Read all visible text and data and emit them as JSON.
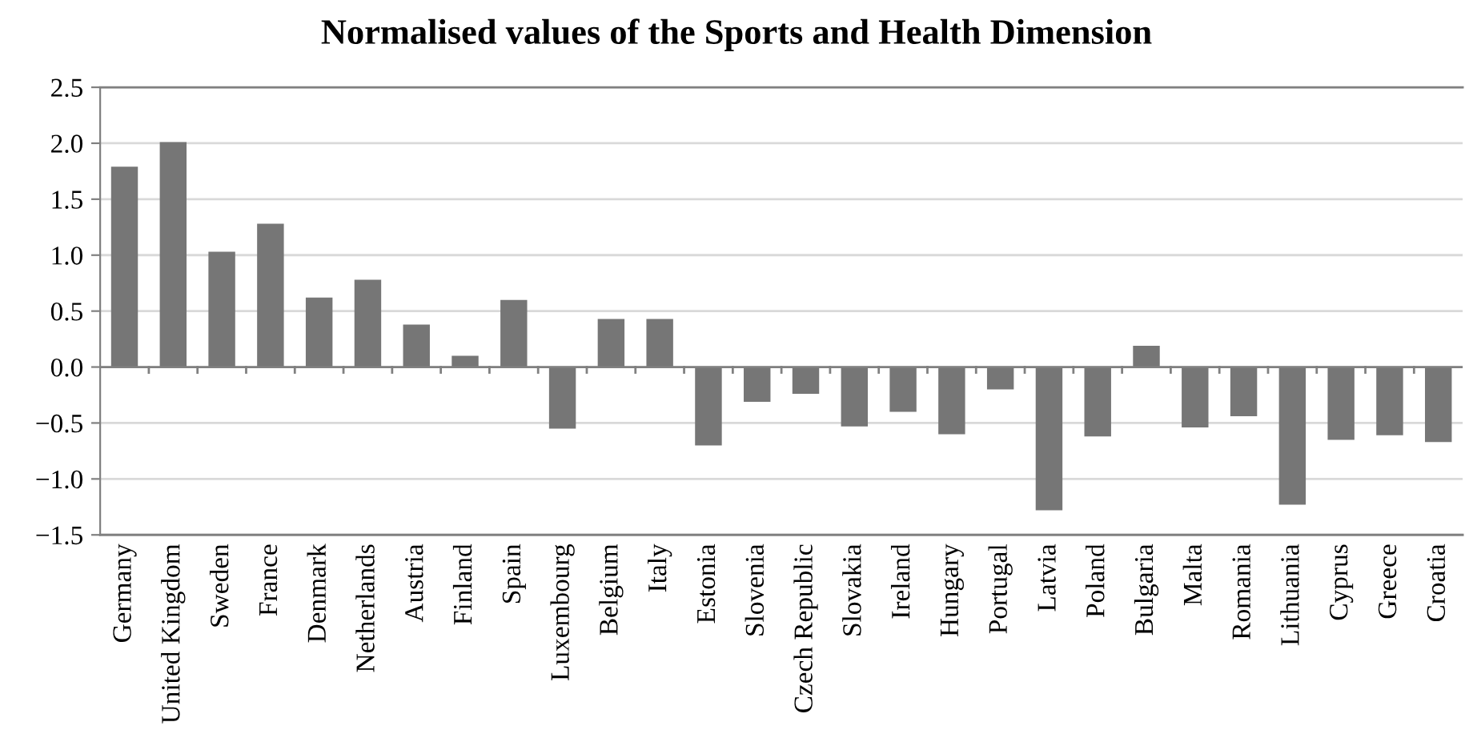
{
  "chart_data": {
    "type": "bar",
    "title": "Normalised values of the Sports and Health Dimension",
    "categories": [
      "Germany",
      "United Kingdom",
      "Sweden",
      "France",
      "Denmark",
      "Netherlands",
      "Austria",
      "Finland",
      "Spain",
      "Luxembourg",
      "Belgium",
      "Italy",
      "Estonia",
      "Slovenia",
      "Czech Republic",
      "Slovakia",
      "Ireland",
      "Hungary",
      "Portugal",
      "Latvia",
      "Poland",
      "Bulgaria",
      "Malta",
      "Romania",
      "Lithuania",
      "Cyprus",
      "Greece",
      "Croatia"
    ],
    "values": [
      1.79,
      2.01,
      1.03,
      1.28,
      0.62,
      0.78,
      0.38,
      0.1,
      0.6,
      -0.55,
      0.43,
      0.43,
      -0.7,
      -0.31,
      -0.24,
      -0.53,
      -0.4,
      -0.6,
      -0.2,
      -1.28,
      -0.62,
      0.19,
      -0.54,
      -0.44,
      -1.23,
      -0.65,
      -0.61,
      -0.67
    ],
    "color": "#767676",
    "ylim": [
      -1.5,
      2.5
    ],
    "yticks": [
      {
        "value": -1.5,
        "label": "−1.5"
      },
      {
        "value": -1.0,
        "label": "−1.0"
      },
      {
        "value": -0.5,
        "label": "−0.5"
      },
      {
        "value": 0.0,
        "label": "0.0"
      },
      {
        "value": 0.5,
        "label": "0.5"
      },
      {
        "value": 1.0,
        "label": "1.0"
      },
      {
        "value": 1.5,
        "label": "1.5"
      },
      {
        "value": 2.0,
        "label": "2.0"
      },
      {
        "value": 2.5,
        "label": "2.5"
      }
    ],
    "grid": "y",
    "legend": false
  }
}
